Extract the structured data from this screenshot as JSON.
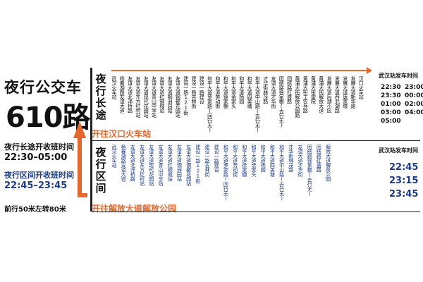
{
  "left": {
    "title": "夜行公交车",
    "route_number": "610路",
    "long_route_label": "夜行长途开收班时间",
    "long_route_time": "22:30–05:00",
    "short_route_label": "夜行区间开收班时间",
    "short_route_time": "22:45–23:45",
    "direction_hint": "前行50米左转80米"
  },
  "panel_long": {
    "title": "夜行长途",
    "direction": "开往汉口火车站",
    "stops": [
      "武汉火车站",
      "杨春湖路友谊大道",
      "友谊大道北洋桥路",
      "友谊大道东方红村站",
      "友谊大道现代花园站",
      "友谊大道青山中学站",
      "友谊大道红钢城站",
      "友谊大道钢洲园站",
      "友谊大道钢都花园站",
      "建设一路121街",
      "建设一路吉林街",
      "建设一路建设",
      "和平大道罗家路(回行无)",
      "和平大道劳动街",
      "和平大道徐家棚",
      "和平大道余家头",
      "和平大道杨园",
      "和平大道四美塘",
      "和平大道中山路(去行无)",
      "才华街林茂路",
      "友谊大道才华街",
      "团结路徐家棚(去行无)",
      "团结路红盛路",
      "黄浦大街解放公园路",
      "黄浦大街工农兵路",
      "黄浦大街雷院",
      "黄浦大街解放大道",
      "发展大道后湖小区",
      "发展大道西北湖路",
      "发展大道唐家墩",
      "发展大道新华路",
      "汉口火车站"
    ],
    "depart_title": "武汉站发车时间",
    "depart_times": [
      "22:30",
      "23:00",
      "23:30",
      "00:00",
      "01:00",
      "02:00",
      "03:00",
      "04:00",
      "05:00"
    ]
  },
  "panel_short": {
    "title": "夜行区间",
    "direction": "开往解放大道解放公园",
    "stops": [
      "武汉火车站",
      "杨春湖路友谊大道",
      "友谊大道北洋桥路",
      "友谊大道东方红村站",
      "友谊大道现代花园站",
      "友谊大道青山中学站",
      "友谊大道红钢城站",
      "友谊大道钢洲园站",
      "友谊大道钢都花园站",
      "建设一路121街",
      "建设一路吉林街",
      "建设一路建设",
      "和平大道罗家路(回行无)",
      "和平大道劳动街",
      "和平大道徐家棚",
      "和平大道余家头",
      "和平大道杨园",
      "和平大道四美塘",
      "和平大道中山路(去行无)",
      "才华街林茂路",
      "友谊大道才华街",
      "团结路徐家棚(去行无)",
      "团结路红盛路",
      "解放大道解放公园"
    ],
    "depart_title": "武汉站发车时间",
    "depart_times": [
      "22:45",
      "23:15",
      "23:45"
    ]
  }
}
